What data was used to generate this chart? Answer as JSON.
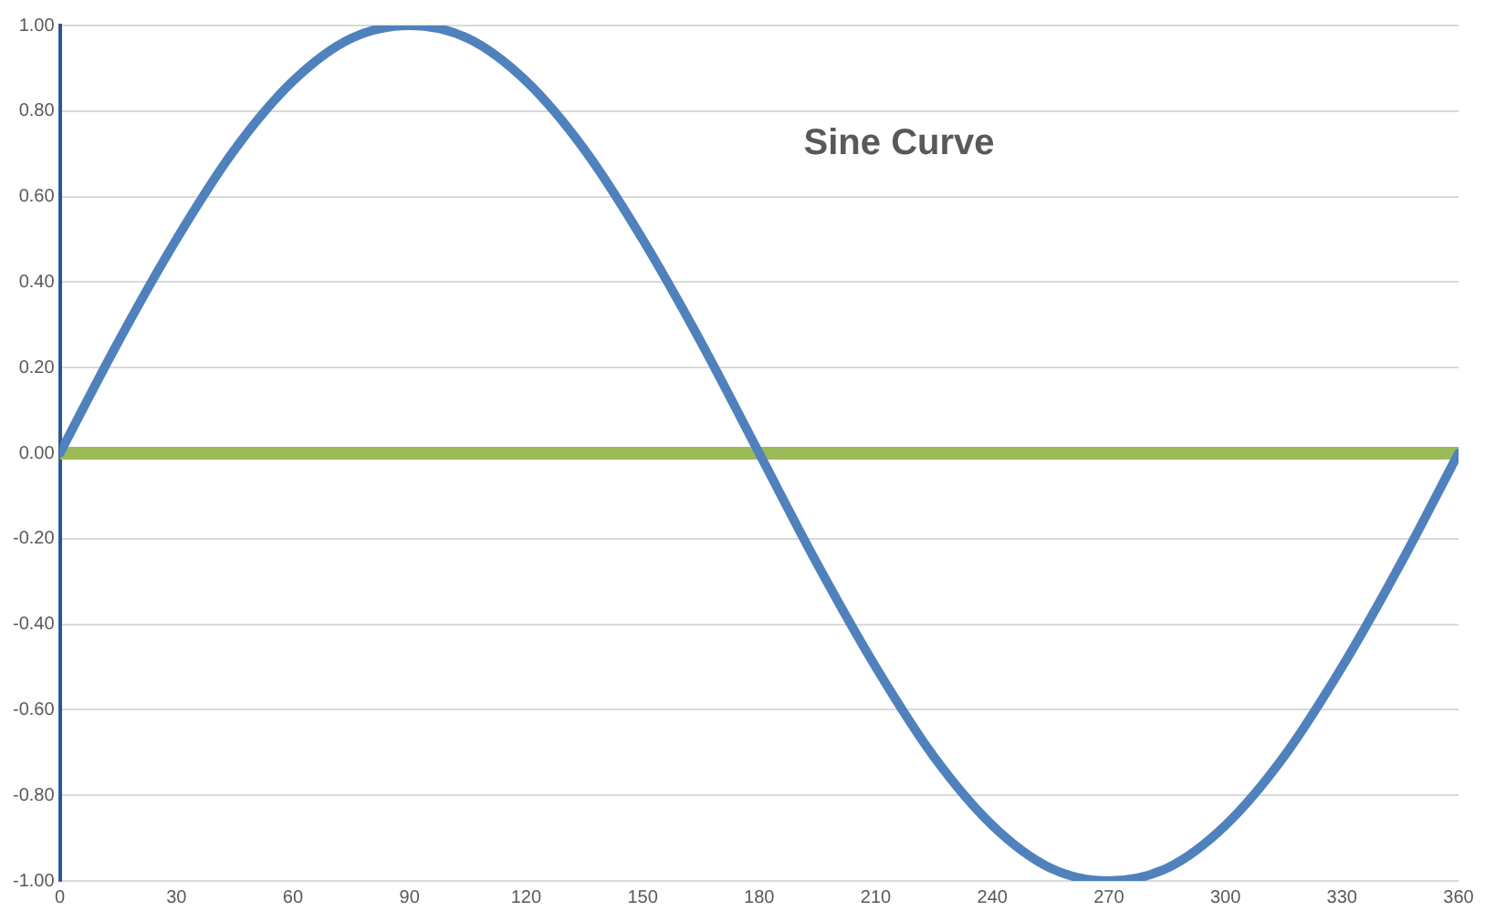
{
  "chart_data": {
    "type": "line",
    "title": "Sine Curve",
    "x": [
      0,
      15,
      30,
      45,
      60,
      75,
      90,
      105,
      120,
      135,
      150,
      165,
      180,
      195,
      210,
      225,
      240,
      255,
      270,
      285,
      300,
      315,
      330,
      345,
      360
    ],
    "series": [
      {
        "color": "#4f81bd",
        "values": [
          0,
          0.26,
          0.5,
          0.71,
          0.87,
          0.97,
          1,
          0.97,
          0.87,
          0.71,
          0.5,
          0.26,
          0,
          -0.26,
          -0.5,
          -0.71,
          -0.87,
          -0.97,
          -1,
          -0.97,
          -0.87,
          -0.71,
          -0.5,
          -0.26,
          0
        ]
      },
      {
        "color": "#9bbb59",
        "x": [
          0,
          360
        ],
        "values": [
          0,
          0
        ]
      }
    ],
    "xlim": [
      0,
      360
    ],
    "xticks": [
      0,
      30,
      60,
      90,
      120,
      150,
      180,
      210,
      240,
      270,
      300,
      330,
      360
    ],
    "ylim": [
      -1,
      1
    ],
    "yticks": [
      {
        "value": -1,
        "label": "-1.00"
      },
      {
        "value": -0.8,
        "label": "-0.80"
      },
      {
        "value": -0.6,
        "label": "-0.60"
      },
      {
        "value": -0.4,
        "label": "-0.40"
      },
      {
        "value": -0.2,
        "label": "-0.20"
      },
      {
        "value": 0,
        "label": "0.00"
      },
      {
        "value": 0.2,
        "label": "0.20"
      },
      {
        "value": 0.4,
        "label": "0.40"
      },
      {
        "value": 0.6,
        "label": "0.60"
      },
      {
        "value": 0.8,
        "label": "0.80"
      },
      {
        "value": 1,
        "label": "1.00"
      }
    ],
    "grid": "y",
    "legend": false,
    "marker": "none",
    "line_style": "solid"
  }
}
